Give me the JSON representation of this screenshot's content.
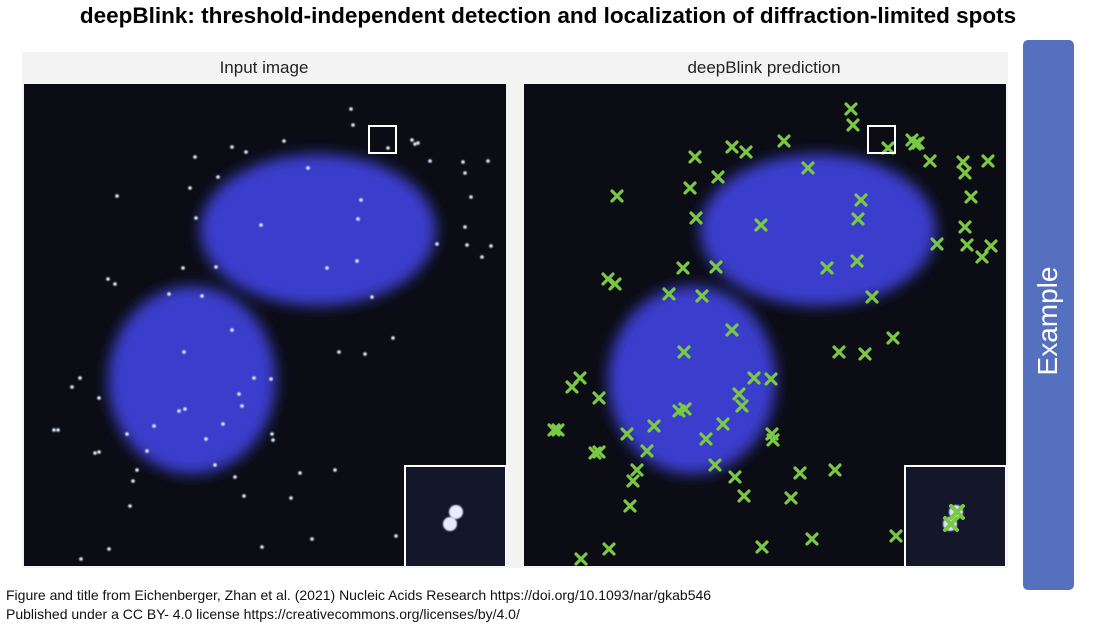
{
  "header": {
    "title": "deepBlink: threshold-independent detection and localization of diffraction-limited spots"
  },
  "panels": [
    {
      "label": "Input image"
    },
    {
      "label": "deepBlink prediction"
    }
  ],
  "side_label": "Example",
  "caption": [
    "Figure and title from Eichenberger, Zhan et al. (2021) Nucleic Acids Research  https://doi.org/10.1093/nar/gkab546",
    "Published under a CC BY- 4.0 license  https://creativecommons.org/licenses/by/4.0/"
  ]
}
